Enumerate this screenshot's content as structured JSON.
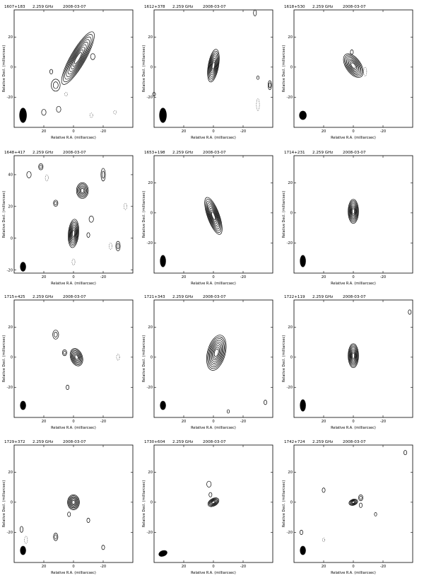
{
  "chart_data": [
    {
      "type": "contour",
      "source": "1607+183",
      "freq": "2.259 GHz",
      "date": "2008-03-07",
      "xlabel": "Relative R.A. (milliarcsec)",
      "ylabel": "Relative Decl. (milliarcsec)",
      "xlim": [
        40,
        -40
      ],
      "ylim": [
        -40,
        38
      ],
      "xticks": [
        20,
        0,
        -20
      ],
      "yticks": [
        20,
        0,
        -20
      ],
      "components": [
        {
          "x": -3,
          "y": 6,
          "major": 20,
          "minor": 5,
          "pa": 30,
          "levels": 9
        },
        {
          "x": 12,
          "y": -12,
          "major": 4,
          "minor": 3,
          "pa": 0,
          "levels": 2
        },
        {
          "x": -13,
          "y": 7,
          "major": 2,
          "minor": 1.5,
          "pa": 0,
          "levels": 1
        },
        {
          "x": 20,
          "y": -30,
          "major": 2,
          "minor": 1.5,
          "pa": 0,
          "levels": 1
        },
        {
          "x": 10,
          "y": -28,
          "major": 2,
          "minor": 1.5,
          "pa": 0,
          "levels": 1
        },
        {
          "x": 15,
          "y": -3,
          "major": 1.5,
          "minor": 1,
          "pa": 0,
          "levels": 1
        }
      ],
      "negatives": [
        {
          "x": 5,
          "y": -18,
          "major": 1.2,
          "minor": 1
        },
        {
          "x": -12,
          "y": -32,
          "major": 1.5,
          "minor": 1
        },
        {
          "x": -28,
          "y": -30,
          "major": 1.2,
          "minor": 1
        }
      ],
      "beam": {
        "x": 34,
        "y": -32,
        "major": 5,
        "minor": 2.5,
        "pa": 0
      }
    },
    {
      "type": "contour",
      "source": "1612+378",
      "freq": "2.259 GHz",
      "date": "2008-03-07",
      "xlabel": "Relative R.A. (milliarcsec)",
      "ylabel": "Relative Decl. (milliarcsec)",
      "xlim": [
        40,
        -40
      ],
      "ylim": [
        -40,
        38
      ],
      "xticks": [
        20,
        0,
        -20
      ],
      "yticks": [
        20,
        0,
        -20
      ],
      "components": [
        {
          "x": 0,
          "y": 1,
          "major": 11,
          "minor": 3.5,
          "pa": 10,
          "levels": 8
        },
        {
          "x": -28,
          "y": 36,
          "major": 2,
          "minor": 1,
          "pa": 0,
          "levels": 1
        },
        {
          "x": -38,
          "y": -12,
          "major": 3,
          "minor": 1.2,
          "pa": 0,
          "levels": 2
        },
        {
          "x": -30,
          "y": -7,
          "major": 1.2,
          "minor": 0.8,
          "pa": 0,
          "levels": 1
        },
        {
          "x": 40,
          "y": -18,
          "major": 1.2,
          "minor": 1,
          "pa": 0,
          "levels": 1
        }
      ],
      "negatives": [
        {
          "x": -30,
          "y": -25,
          "major": 4,
          "minor": 1
        }
      ],
      "beam": {
        "x": 34,
        "y": -32,
        "major": 5,
        "minor": 2.5,
        "pa": 0
      }
    },
    {
      "type": "contour",
      "source": "1618+530",
      "freq": "2.259 GHz",
      "date": "2008-03-07",
      "xlabel": "Relative R.A. (milliarcsec)",
      "ylabel": "Relative Decl. (milliarcsec)",
      "xlim": [
        40,
        -40
      ],
      "ylim": [
        -40,
        38
      ],
      "xticks": [
        20,
        0,
        -20
      ],
      "yticks": [
        20,
        0,
        -20
      ],
      "components": [
        {
          "x": 0,
          "y": 1,
          "major": 9,
          "minor": 5,
          "pa": -35,
          "levels": 8
        },
        {
          "x": 1,
          "y": 10,
          "major": 1.5,
          "minor": 1,
          "pa": 0,
          "levels": 1
        }
      ],
      "negatives": [
        {
          "x": -8,
          "y": -3,
          "major": 3,
          "minor": 1
        }
      ],
      "beam": {
        "x": 34,
        "y": -32,
        "major": 3,
        "minor": 2.5,
        "pa": 0
      }
    },
    {
      "type": "contour",
      "source": "1648+417",
      "freq": "2.259 GHz",
      "date": "2008-03-07",
      "xlabel": "Relative R.A. (milliarcsec)",
      "ylabel": "Relative Decl. (milliarcsec)",
      "xlim": [
        40,
        -40
      ],
      "ylim": [
        -22,
        52
      ],
      "xticks": [
        20,
        0,
        -20
      ],
      "yticks": [
        40,
        20,
        0,
        -20
      ],
      "components": [
        {
          "x": 0,
          "y": 3,
          "major": 9,
          "minor": 3.5,
          "pa": 5,
          "levels": 8
        },
        {
          "x": -6,
          "y": 30,
          "major": 5,
          "minor": 4,
          "pa": 0,
          "levels": 6
        },
        {
          "x": 22,
          "y": 45,
          "major": 2,
          "minor": 1.5,
          "pa": 0,
          "levels": 2
        },
        {
          "x": 12,
          "y": 22,
          "major": 2,
          "minor": 1.5,
          "pa": 0,
          "levels": 2
        },
        {
          "x": -12,
          "y": 12,
          "major": 2,
          "minor": 1.5,
          "pa": 0,
          "levels": 1
        },
        {
          "x": -30,
          "y": -5,
          "major": 3,
          "minor": 1.5,
          "pa": 0,
          "levels": 2
        },
        {
          "x": -20,
          "y": 40,
          "major": 4,
          "minor": 1.5,
          "pa": 0,
          "levels": 2
        },
        {
          "x": 30,
          "y": 40,
          "major": 2,
          "minor": 1.5,
          "pa": 0,
          "levels": 1
        },
        {
          "x": -10,
          "y": 2,
          "major": 1.5,
          "minor": 1,
          "pa": 0,
          "levels": 1
        }
      ],
      "negatives": [
        {
          "x": 18,
          "y": 38,
          "major": 2,
          "minor": 1
        },
        {
          "x": -35,
          "y": 20,
          "major": 2,
          "minor": 1
        },
        {
          "x": 0,
          "y": -15,
          "major": 2,
          "minor": 1
        },
        {
          "x": -25,
          "y": -5,
          "major": 2,
          "minor": 1
        }
      ],
      "beam": {
        "x": 34,
        "y": -18,
        "major": 3,
        "minor": 2,
        "pa": 0
      }
    },
    {
      "type": "contour",
      "source": "1653+198",
      "freq": "2.259 GHz",
      "date": "2008-03-07",
      "xlabel": "Relative R.A. (milliarcsec)",
      "ylabel": "Relative Decl. (milliarcsec)",
      "xlim": [
        40,
        -40
      ],
      "ylim": [
        -40,
        38
      ],
      "xticks": [
        20,
        0,
        -20
      ],
      "yticks": [
        20,
        0,
        -20
      ],
      "components": [
        {
          "x": 0,
          "y": -2,
          "major": 13,
          "minor": 4,
          "pa": -20,
          "levels": 9
        }
      ],
      "negatives": [],
      "beam": {
        "x": 34,
        "y": -32,
        "major": 4,
        "minor": 2,
        "pa": 0
      }
    },
    {
      "type": "contour",
      "source": "1714+231",
      "freq": "2.259 GHz",
      "date": "2008-03-07",
      "xlabel": "Relative R.A. (milliarcsec)",
      "ylabel": "Relative Decl. (milliarcsec)",
      "xlim": [
        40,
        -40
      ],
      "ylim": [
        -40,
        38
      ],
      "xticks": [
        20,
        0,
        -20
      ],
      "yticks": [
        20,
        0,
        -20
      ],
      "components": [
        {
          "x": 0,
          "y": 1,
          "major": 8,
          "minor": 3.5,
          "pa": 0,
          "levels": 8
        }
      ],
      "negatives": [],
      "beam": {
        "x": 34,
        "y": -32,
        "major": 4,
        "minor": 2,
        "pa": 0
      }
    },
    {
      "type": "contour",
      "source": "1715+425",
      "freq": "2.259 GHz",
      "date": "2008-03-07",
      "xlabel": "Relative R.A. (milliarcsec)",
      "ylabel": "Relative Decl. (milliarcsec)",
      "xlim": [
        40,
        -40
      ],
      "ylim": [
        -40,
        38
      ],
      "xticks": [
        20,
        0,
        -20
      ],
      "yticks": [
        20,
        0,
        -20
      ],
      "components": [
        {
          "x": -2,
          "y": 0,
          "major": 6,
          "minor": 4,
          "pa": -20,
          "levels": 7
        },
        {
          "x": 12,
          "y": 15,
          "major": 3,
          "minor": 2,
          "pa": 0,
          "levels": 2
        },
        {
          "x": 6,
          "y": 3,
          "major": 2,
          "minor": 1.5,
          "pa": 0,
          "levels": 2
        },
        {
          "x": 4,
          "y": -20,
          "major": 1.5,
          "minor": 1,
          "pa": 0,
          "levels": 1
        }
      ],
      "negatives": [
        {
          "x": -30,
          "y": 0,
          "major": 2,
          "minor": 1
        }
      ],
      "beam": {
        "x": 34,
        "y": -32,
        "major": 3,
        "minor": 2,
        "pa": 0
      }
    },
    {
      "type": "contour",
      "source": "1721+343",
      "freq": "2.259 GHz",
      "date": "2008-03-07",
      "xlabel": "Relative R.A. (milliarcsec)",
      "ylabel": "Relative Decl. (milliarcsec)",
      "xlim": [
        40,
        -40
      ],
      "ylim": [
        -40,
        38
      ],
      "xticks": [
        20,
        0,
        -20
      ],
      "yticks": [
        20,
        0,
        -20
      ],
      "components": [
        {
          "x": -2,
          "y": 3,
          "major": 12,
          "minor": 6,
          "pa": 15,
          "levels": 9
        },
        {
          "x": -35,
          "y": -30,
          "major": 1.5,
          "minor": 1,
          "pa": 0,
          "levels": 1
        },
        {
          "x": -10,
          "y": -36,
          "major": 1.2,
          "minor": 0.8,
          "pa": 0,
          "levels": 1
        }
      ],
      "negatives": [],
      "beam": {
        "x": 34,
        "y": -32,
        "major": 3,
        "minor": 2,
        "pa": 0
      }
    },
    {
      "type": "contour",
      "source": "1722+119",
      "freq": "2.259 GHz",
      "date": "2008-03-07",
      "xlabel": "Relative R.A. (milliarcsec)",
      "ylabel": "Relative Decl. (milliarcsec)",
      "xlim": [
        40,
        -40
      ],
      "ylim": [
        -40,
        38
      ],
      "xticks": [
        20,
        0,
        -20
      ],
      "yticks": [
        20,
        0,
        -20
      ],
      "components": [
        {
          "x": 0,
          "y": 1,
          "major": 8,
          "minor": 3.5,
          "pa": 0,
          "levels": 8
        },
        {
          "x": -38,
          "y": 30,
          "major": 1.5,
          "minor": 1,
          "pa": 0,
          "levels": 1
        }
      ],
      "negatives": [],
      "beam": {
        "x": 34,
        "y": -32,
        "major": 4,
        "minor": 2,
        "pa": 0
      }
    },
    {
      "type": "contour",
      "source": "1729+372",
      "freq": "2.259 GHz",
      "date": "2008-03-07",
      "xlabel": "Relative R.A. (milliarcsec)",
      "ylabel": "Relative Decl. (milliarcsec)",
      "xlim": [
        40,
        -40
      ],
      "ylim": [
        -40,
        38
      ],
      "xticks": [
        20,
        0,
        -20
      ],
      "yticks": [
        20,
        0,
        -20
      ],
      "components": [
        {
          "x": 0,
          "y": 0,
          "major": 5,
          "minor": 4,
          "pa": 0,
          "levels": 7
        },
        {
          "x": 12,
          "y": -23,
          "major": 2.5,
          "minor": 1.5,
          "pa": 0,
          "levels": 2
        },
        {
          "x": 3,
          "y": -8,
          "major": 1.5,
          "minor": 1,
          "pa": 0,
          "levels": 1
        },
        {
          "x": -10,
          "y": -12,
          "major": 1.5,
          "minor": 1,
          "pa": 0,
          "levels": 1
        },
        {
          "x": -20,
          "y": -30,
          "major": 1.5,
          "minor": 1,
          "pa": 0,
          "levels": 1
        },
        {
          "x": 35,
          "y": -18,
          "major": 2,
          "minor": 1,
          "pa": 0,
          "levels": 1
        }
      ],
      "negatives": [
        {
          "x": 32,
          "y": -25,
          "major": 2.5,
          "minor": 1
        }
      ],
      "beam": {
        "x": 34,
        "y": -32,
        "major": 3,
        "minor": 2,
        "pa": 0
      }
    },
    {
      "type": "contour",
      "source": "1730+604",
      "freq": "2.259 GHz",
      "date": "2008-03-07",
      "xlabel": "Relative R.A. (milliarcsec)",
      "ylabel": "Relative Decl. (milliarcsec)",
      "xlim": [
        40,
        -40
      ],
      "ylim": [
        -40,
        38
      ],
      "xticks": [
        20,
        0,
        -20
      ],
      "yticks": [
        20,
        0,
        -20
      ],
      "components": [
        {
          "x": 0,
          "y": 0,
          "major": 4,
          "minor": 2.5,
          "pa": 60,
          "levels": 6
        },
        {
          "x": 3,
          "y": 12,
          "major": 2,
          "minor": 1.5,
          "pa": 0,
          "levels": 1
        },
        {
          "x": 2,
          "y": 5,
          "major": 1.5,
          "minor": 1,
          "pa": 0,
          "levels": 1
        }
      ],
      "negatives": [],
      "beam": {
        "x": 34,
        "y": -34,
        "major": 3,
        "minor": 2,
        "pa": 70
      }
    },
    {
      "type": "contour",
      "source": "1742+724",
      "freq": "2.259 GHz",
      "date": "2008-03-07",
      "xlabel": "Relative R.A. (milliarcsec)",
      "ylabel": "Relative Decl. (milliarcsec)",
      "xlim": [
        40,
        -40
      ],
      "ylim": [
        -40,
        38
      ],
      "xticks": [
        20,
        0,
        -20
      ],
      "yticks": [
        20,
        0,
        -20
      ],
      "components": [
        {
          "x": 0,
          "y": 0,
          "major": 3,
          "minor": 2,
          "pa": 70,
          "levels": 5
        },
        {
          "x": -5,
          "y": 3,
          "major": 2,
          "minor": 1.5,
          "pa": 0,
          "levels": 2
        },
        {
          "x": -5,
          "y": -2,
          "major": 1.5,
          "minor": 1,
          "pa": 0,
          "levels": 1
        },
        {
          "x": 20,
          "y": 8,
          "major": 1.5,
          "minor": 1,
          "pa": 0,
          "levels": 1
        },
        {
          "x": -35,
          "y": 33,
          "major": 1.5,
          "minor": 1,
          "pa": 0,
          "levels": 1
        },
        {
          "x": 35,
          "y": -20,
          "major": 1.5,
          "minor": 1,
          "pa": 0,
          "levels": 1
        },
        {
          "x": -15,
          "y": -8,
          "major": 1.2,
          "minor": 0.8,
          "pa": 0,
          "levels": 1
        }
      ],
      "negatives": [
        {
          "x": 20,
          "y": -25,
          "major": 1.2,
          "minor": 0.8
        }
      ],
      "beam": {
        "x": 34,
        "y": -32,
        "major": 3,
        "minor": 2,
        "pa": 0
      }
    }
  ]
}
